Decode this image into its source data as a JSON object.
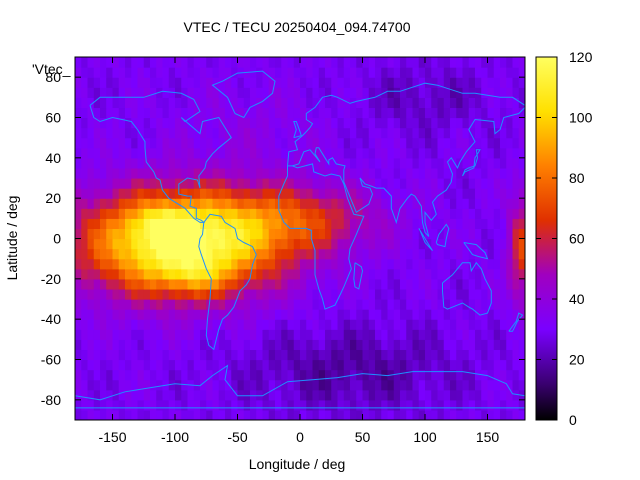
{
  "chart_data": {
    "type": "heatmap",
    "title": "VTEC / TECU 20250404_094.74700",
    "xlabel": "Longitude / deg",
    "ylabel": "Latitude / deg",
    "key_label": "'Vtec_",
    "xlim": [
      -180,
      180
    ],
    "ylim": [
      -90,
      90
    ],
    "x_ticks": [
      -150,
      -100,
      -50,
      0,
      50,
      100,
      150
    ],
    "y_ticks": [
      -80,
      -60,
      -40,
      -20,
      0,
      20,
      40,
      60,
      80
    ],
    "colorbar": {
      "min": 0,
      "max": 120,
      "ticks": [
        0,
        20,
        40,
        60,
        80,
        100,
        120
      ]
    },
    "map_overlay": "coastlines",
    "coastline_color": "#1e90ff",
    "grid": false,
    "colormap": [
      "#000000",
      "#3a0070",
      "#7a00ff",
      "#a000c0",
      "#e03000",
      "#ff8000",
      "#ffe000",
      "#ffff60"
    ],
    "features": [
      {
        "name": "main-crest-south-america",
        "lon": -95,
        "lat": -2,
        "sigma_lon": 55,
        "sigma_lat": 18,
        "value": 95
      },
      {
        "name": "peak-north",
        "lon": -110,
        "lat": 8,
        "sigma_lon": 15,
        "sigma_lat": 6,
        "value": 18
      },
      {
        "name": "peak-south",
        "lon": -85,
        "lat": -18,
        "sigma_lon": 18,
        "sigma_lat": 6,
        "value": 15
      },
      {
        "name": "atlantic-africa-band",
        "lon": 0,
        "lat": 10,
        "sigma_lon": 45,
        "sigma_lat": 12,
        "value": 30
      },
      {
        "name": "east-pacific-edge",
        "lon": 178,
        "lat": -5,
        "sigma_lon": 8,
        "sigma_lat": 18,
        "value": 38
      },
      {
        "name": "north-atlantic",
        "lon": -40,
        "lat": 55,
        "sigma_lon": 40,
        "sigma_lat": 15,
        "value": 6
      },
      {
        "name": "southern-ocean-low",
        "lon": 40,
        "lat": -65,
        "sigma_lon": 60,
        "sigma_lat": 15,
        "value": -12
      },
      {
        "name": "siberia-low",
        "lon": 100,
        "lat": 70,
        "sigma_lon": 35,
        "sigma_lat": 12,
        "value": -8
      }
    ],
    "background_value": 30
  }
}
